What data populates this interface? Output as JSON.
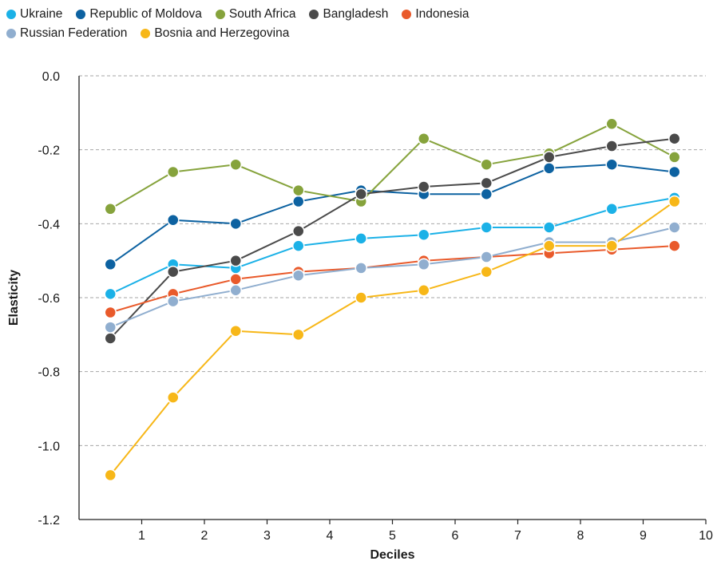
{
  "chart_data": {
    "type": "line",
    "xlabel": "Deciles",
    "ylabel": "Elasticity",
    "xlim": [
      0,
      10
    ],
    "ylim": [
      -1.2,
      0.0
    ],
    "x_ticks": [
      "1",
      "2",
      "3",
      "4",
      "5",
      "6",
      "7",
      "8",
      "9",
      "10"
    ],
    "y_ticks": [
      "0.0",
      "-0.2",
      "-0.4",
      "-0.6",
      "-0.8",
      "-1.0",
      "-1.2"
    ],
    "grid": "horizontal dashed",
    "legend_position": "top",
    "x": [
      0.5,
      1.5,
      2.5,
      3.5,
      4.5,
      5.5,
      6.5,
      7.5,
      8.5,
      9.5
    ],
    "series": [
      {
        "name": "Ukraine",
        "color": "#1bb1e7",
        "values": [
          -0.59,
          -0.51,
          -0.52,
          -0.46,
          -0.44,
          -0.43,
          -0.41,
          -0.41,
          -0.36,
          -0.33
        ]
      },
      {
        "name": "Republic of Moldova",
        "color": "#0d62a1",
        "values": [
          -0.51,
          -0.39,
          -0.4,
          -0.34,
          -0.31,
          -0.32,
          -0.32,
          -0.25,
          -0.24,
          -0.26
        ]
      },
      {
        "name": "South Africa",
        "color": "#86a33c",
        "values": [
          -0.36,
          -0.26,
          -0.24,
          -0.31,
          -0.34,
          -0.17,
          -0.24,
          -0.21,
          -0.13,
          -0.22
        ]
      },
      {
        "name": "Bangladesh",
        "color": "#4a4a4a",
        "values": [
          -0.71,
          -0.53,
          -0.5,
          -0.42,
          -0.32,
          -0.3,
          -0.29,
          -0.22,
          -0.19,
          -0.17
        ]
      },
      {
        "name": "Indonesia",
        "color": "#e95a2b",
        "values": [
          -0.64,
          -0.59,
          -0.55,
          -0.53,
          -0.52,
          -0.5,
          -0.49,
          -0.48,
          -0.47,
          -0.46
        ]
      },
      {
        "name": "Russian Federation",
        "color": "#90aecf",
        "values": [
          -0.68,
          -0.61,
          -0.58,
          -0.54,
          -0.52,
          -0.51,
          -0.49,
          -0.45,
          -0.45,
          -0.41
        ]
      },
      {
        "name": "Bosnia and Herzegovina",
        "color": "#f7b718",
        "values": [
          -1.08,
          -0.87,
          -0.69,
          -0.7,
          -0.6,
          -0.58,
          -0.53,
          -0.46,
          -0.46,
          -0.34
        ]
      }
    ]
  }
}
